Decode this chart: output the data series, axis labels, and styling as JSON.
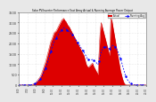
{
  "title": "Solar PV/Inverter Performance East Array Actual & Running Average Power Output",
  "bg_color": "#e8e8e8",
  "plot_bg": "#ffffff",
  "bar_color": "#dd0000",
  "bar_edge": "#cc0000",
  "avg_color": "#0000ff",
  "grid_color": "#cccccc",
  "xlabel": "",
  "ylabel": "",
  "ylim": [
    0,
    3500
  ],
  "yticks": [
    0,
    500,
    1000,
    1500,
    2000,
    2500,
    3000,
    3500
  ],
  "num_points": 120,
  "actual_values": [
    0,
    0,
    0,
    0,
    0,
    0,
    0,
    0,
    0,
    0,
    5,
    10,
    20,
    30,
    50,
    80,
    120,
    180,
    250,
    320,
    400,
    500,
    650,
    800,
    950,
    1100,
    1300,
    1500,
    1700,
    1900,
    2100,
    2200,
    2350,
    2500,
    2550,
    2600,
    2700,
    2800,
    2900,
    3000,
    3100,
    3150,
    3200,
    3100,
    3050,
    2950,
    2850,
    2800,
    2700,
    2600,
    2500,
    2400,
    2300,
    2200,
    2100,
    2000,
    1900,
    1800,
    1700,
    1600,
    1500,
    1400,
    1200,
    1000,
    900,
    850,
    900,
    950,
    1000,
    1050,
    900,
    800,
    700,
    600,
    500,
    1500,
    2500,
    3000,
    2800,
    2600,
    2400,
    2200,
    2000,
    1800,
    1600,
    1400,
    3200,
    3100,
    2800,
    2500,
    2200,
    1900,
    1600,
    1300,
    1000,
    700,
    500,
    300,
    150,
    50,
    20,
    10,
    5,
    2,
    0,
    0,
    0,
    0,
    0,
    0,
    0,
    0,
    0,
    0,
    0,
    0,
    0,
    0,
    0,
    0
  ],
  "avg_values": [
    0,
    0,
    0,
    0,
    0,
    0,
    0,
    0,
    0,
    0,
    3,
    6,
    12,
    20,
    35,
    55,
    85,
    125,
    170,
    220,
    285,
    360,
    450,
    560,
    680,
    800,
    950,
    1100,
    1270,
    1440,
    1620,
    1780,
    1930,
    2070,
    2180,
    2260,
    2340,
    2430,
    2510,
    2590,
    2650,
    2700,
    2750,
    2720,
    2690,
    2650,
    2600,
    2560,
    2510,
    2460,
    2400,
    2340,
    2270,
    2200,
    2120,
    2040,
    1960,
    1880,
    1800,
    1720,
    1640,
    1560,
    1470,
    1370,
    1280,
    1210,
    1200,
    1200,
    1210,
    1220,
    1190,
    1150,
    1100,
    1040,
    970,
    1120,
    1360,
    1560,
    1700,
    1790,
    1830,
    1830,
    1820,
    1800,
    1770,
    1720,
    1820,
    1880,
    1900,
    1880,
    1830,
    1760,
    1670,
    1560,
    1430,
    1280,
    1120,
    940,
    760,
    580,
    430,
    310,
    220,
    150,
    100,
    60,
    35,
    15,
    5,
    2,
    0,
    0,
    0,
    0,
    0,
    0,
    0,
    0,
    0,
    0
  ]
}
